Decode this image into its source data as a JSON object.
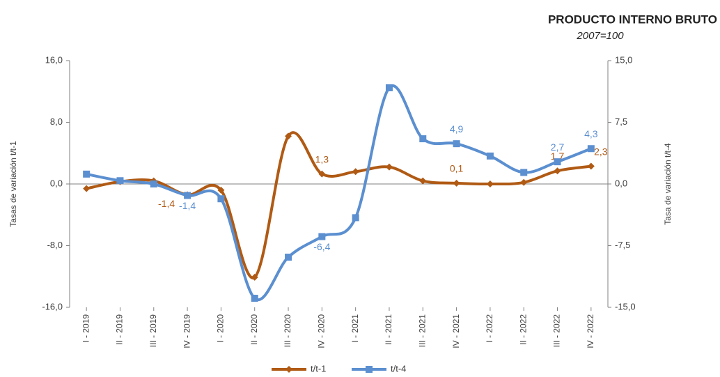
{
  "chart_data": {
    "type": "line",
    "title": "PRODUCTO INTERNO BRUTO",
    "subtitle": "2007=100",
    "ylabel": "Tasas de variación t/t-1",
    "y2label": "Tasa de variación t/t-4",
    "categories": [
      "I - 2019",
      "II - 2019",
      "III - 2019",
      "IV - 2019",
      "I - 2020",
      "II - 2020",
      "III - 2020",
      "IV - 2020",
      "I - 2021",
      "II - 2021",
      "III - 2021",
      "IV - 2021",
      "I - 2022",
      "II - 2022",
      "III - 2022",
      "IV - 2022"
    ],
    "ylim": [
      -16,
      16
    ],
    "yticks": [
      {
        "value": -16,
        "label": "-16,0"
      },
      {
        "value": -8,
        "label": "-8,0"
      },
      {
        "value": 0,
        "label": "0,0"
      },
      {
        "value": 8,
        "label": "8,0"
      },
      {
        "value": 16,
        "label": "16,0"
      }
    ],
    "y2lim": [
      -15,
      15
    ],
    "y2ticks": [
      {
        "value": -15,
        "label": "-15,0"
      },
      {
        "value": -7.5,
        "label": "-7,5"
      },
      {
        "value": 0,
        "label": "0,0"
      },
      {
        "value": 7.5,
        "label": "7,5"
      },
      {
        "value": 15,
        "label": "15,0"
      }
    ],
    "legend": "bottom",
    "series": [
      {
        "name": "t/t-1",
        "color": "#b05a14",
        "marker": "diamond",
        "values": [
          -0.6,
          0.3,
          0.4,
          -1.4,
          -0.8,
          -12.1,
          6.2,
          1.3,
          1.6,
          2.2,
          0.4,
          0.1,
          0.0,
          0.2,
          1.7,
          2.3
        ],
        "value_labels": [
          null,
          null,
          null,
          "-1,4",
          null,
          null,
          null,
          "1,3",
          null,
          null,
          null,
          "0,1",
          null,
          null,
          "1,7",
          "2,3"
        ]
      },
      {
        "name": "t/t-4",
        "color": "#5b8fd0",
        "marker": "square",
        "axis": "y2",
        "values": [
          1.2,
          0.4,
          0.0,
          -1.4,
          -1.8,
          -13.9,
          -8.9,
          -6.4,
          -4.1,
          11.7,
          5.5,
          4.9,
          3.4,
          1.4,
          2.7,
          4.3
        ],
        "value_labels": [
          null,
          null,
          null,
          "-1,4",
          null,
          null,
          null,
          "-6,4",
          null,
          null,
          null,
          "4,9",
          null,
          null,
          "2,7",
          "4,3"
        ]
      }
    ]
  }
}
